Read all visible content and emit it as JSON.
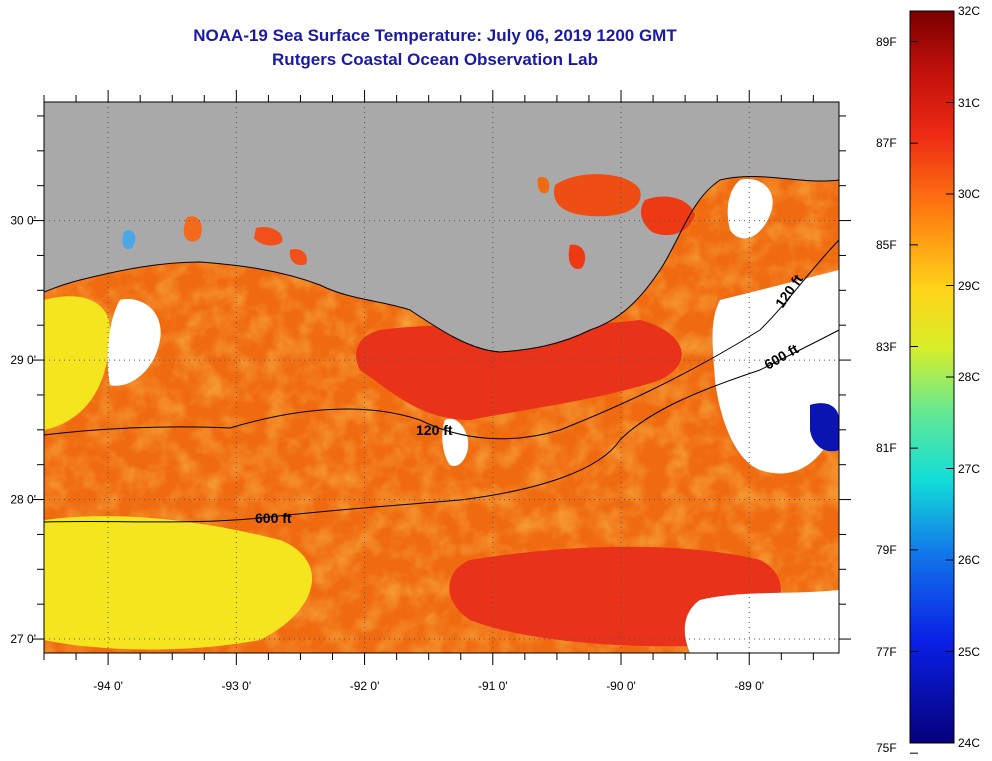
{
  "title": {
    "line1": "NOAA-19 Sea Surface Temperature:  July 06, 2019 1200 GMT",
    "line2": "Rutgers Coastal Ocean Observation Lab"
  },
  "map": {
    "lon_range": [
      -94.5,
      -88.3
    ],
    "lat_range": [
      26.9,
      30.85
    ],
    "lon_ticks": [
      {
        "value": -94,
        "label": "-94 0'"
      },
      {
        "value": -93,
        "label": "-93 0'"
      },
      {
        "value": -92,
        "label": "-92 0'"
      },
      {
        "value": -91,
        "label": "-91 0'"
      },
      {
        "value": -90,
        "label": "-90 0'"
      },
      {
        "value": -89,
        "label": "-89 0'"
      }
    ],
    "lat_ticks": [
      {
        "value": 30,
        "label": "30 0'"
      },
      {
        "value": 29,
        "label": "29 0'"
      },
      {
        "value": 28,
        "label": "28 0'"
      },
      {
        "value": 27,
        "label": "27 0'"
      }
    ],
    "colors": {
      "land": "#a9a9a9",
      "cloud": "#ffffff",
      "warm": "#f06a10",
      "hot": "#e8321a",
      "mild": "#f5e51e"
    },
    "contours": [
      {
        "label": "120 ft"
      },
      {
        "label": "120 ft"
      },
      {
        "label": "600 ft"
      },
      {
        "label": "600 ft"
      }
    ]
  },
  "colorbar": {
    "celsius_labels": [
      "32C",
      "31C",
      "30C",
      "29C",
      "28C",
      "27C",
      "26C",
      "25C",
      "24C"
    ],
    "fahrenheit_labels": [
      "89F",
      "87F",
      "85F",
      "83F",
      "81F",
      "79F",
      "77F",
      "75F"
    ]
  }
}
